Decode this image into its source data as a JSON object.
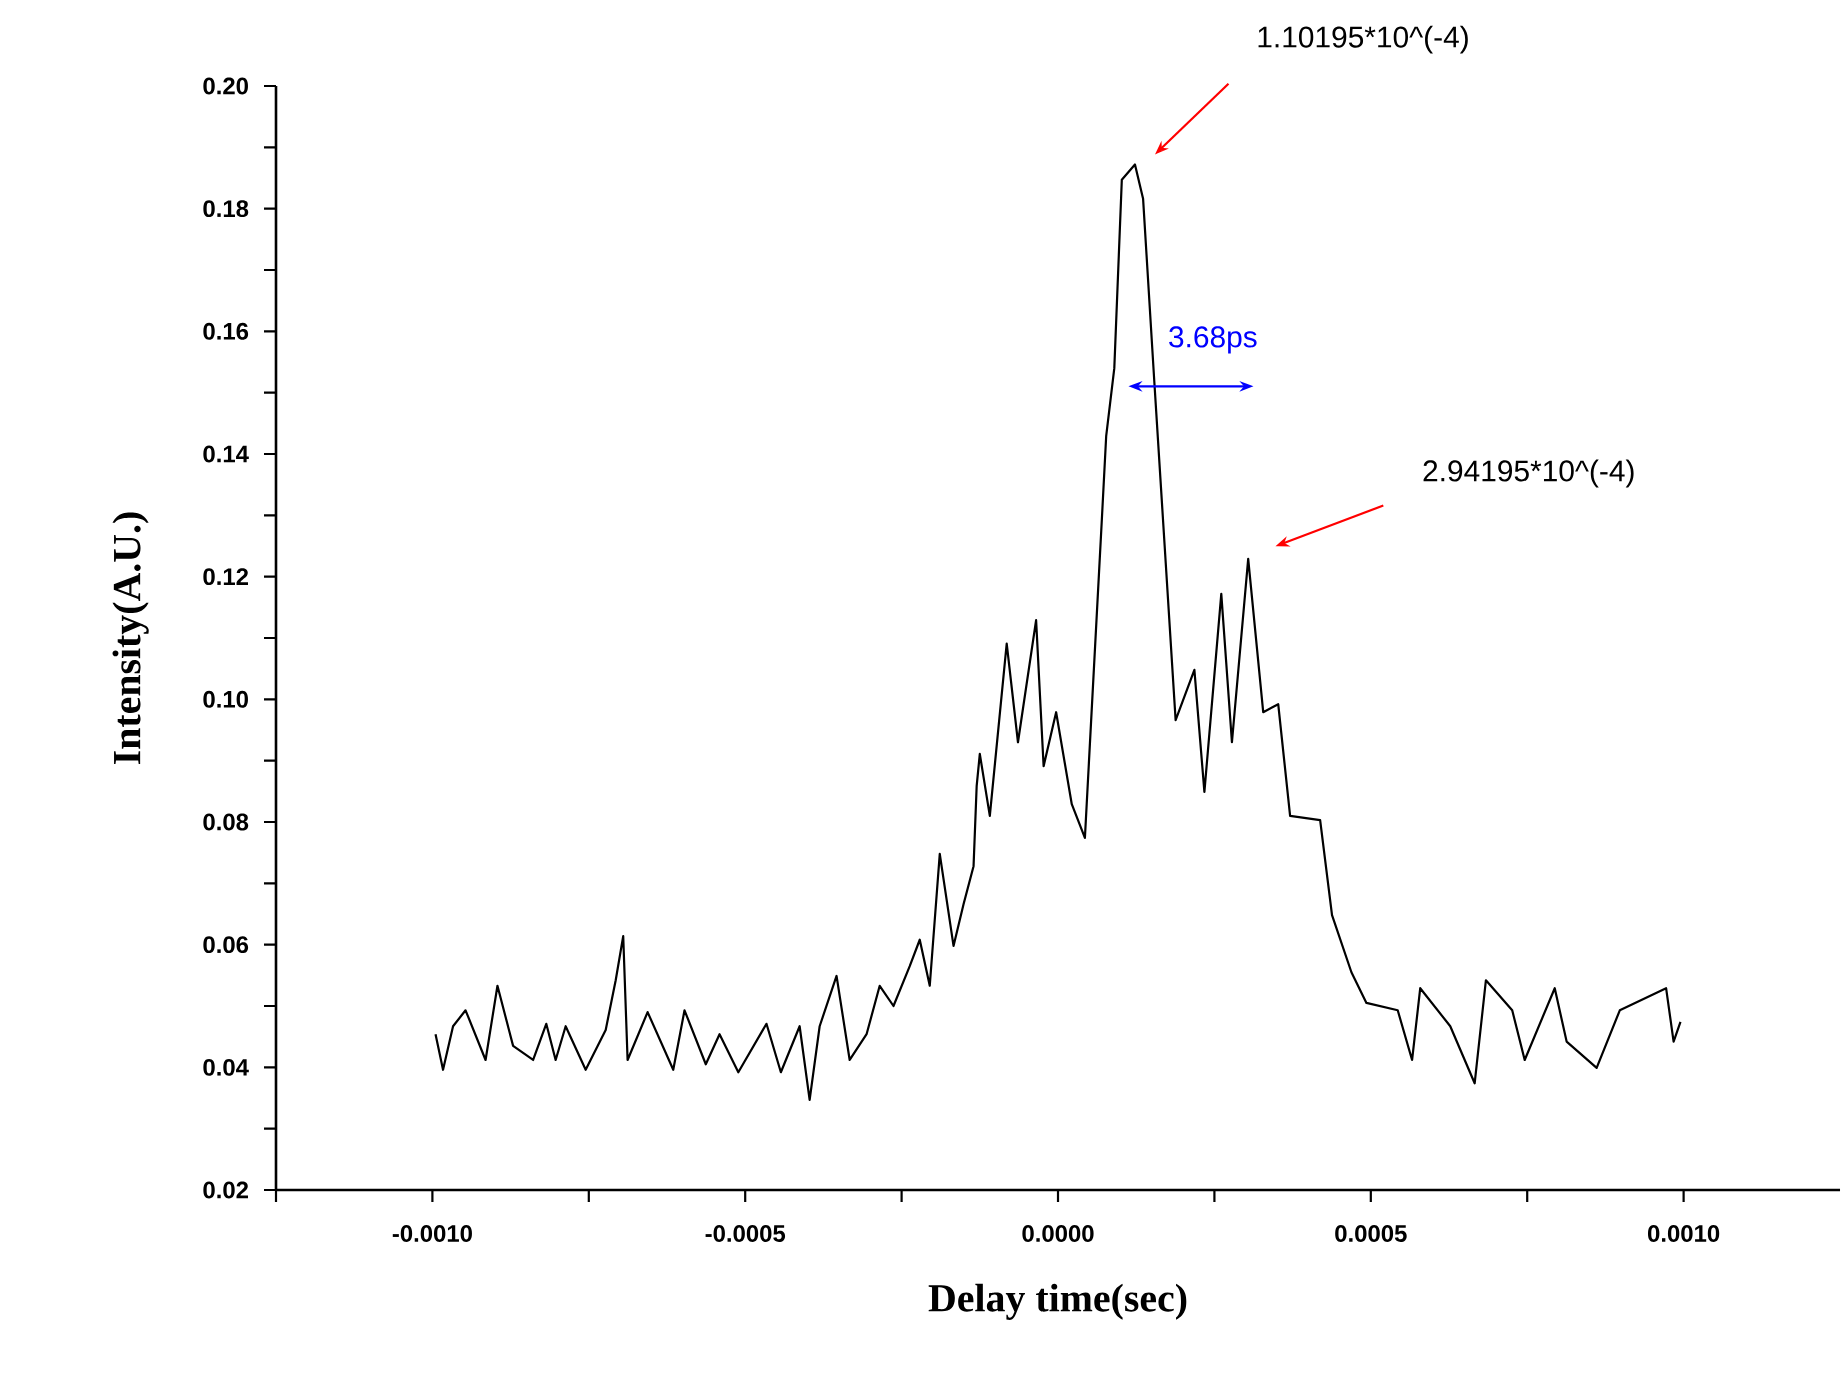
{
  "chart_data": {
    "type": "line",
    "xlabel": "Delay time(sec)",
    "ylabel": "Intensity(A.U.)",
    "xlim": [
      -0.00125,
      0.00125
    ],
    "ylim": [
      0.02,
      0.2
    ],
    "xticks": [
      {
        "value": -0.00125,
        "label": null
      },
      {
        "value": -0.001,
        "label": "-0.0010"
      },
      {
        "value": -0.00075,
        "label": null
      },
      {
        "value": -0.0005,
        "label": "-0.0005"
      },
      {
        "value": -0.00025,
        "label": null
      },
      {
        "value": 0,
        "label": "0.0000"
      },
      {
        "value": 0.00025,
        "label": null
      },
      {
        "value": 0.0005,
        "label": "0.0005"
      },
      {
        "value": 0.00075,
        "label": null
      },
      {
        "value": 0.001,
        "label": "0.0010"
      }
    ],
    "yticks": [
      {
        "value": 0.02,
        "label": "0.02"
      },
      {
        "value": 0.03,
        "label": null
      },
      {
        "value": 0.04,
        "label": "0.04"
      },
      {
        "value": 0.05,
        "label": null
      },
      {
        "value": 0.06,
        "label": "0.06"
      },
      {
        "value": 0.07,
        "label": null
      },
      {
        "value": 0.08,
        "label": "0.08"
      },
      {
        "value": 0.09,
        "label": null
      },
      {
        "value": 0.1,
        "label": "0.10"
      },
      {
        "value": 0.11,
        "label": null
      },
      {
        "value": 0.12,
        "label": "0.12"
      },
      {
        "value": 0.13,
        "label": null
      },
      {
        "value": 0.14,
        "label": "0.14"
      },
      {
        "value": 0.15,
        "label": null
      },
      {
        "value": 0.16,
        "label": "0.16"
      },
      {
        "value": 0.17,
        "label": null
      },
      {
        "value": 0.18,
        "label": "0.18"
      },
      {
        "value": 0.19,
        "label": null
      },
      {
        "value": 0.2,
        "label": "0.20"
      }
    ],
    "line_style": "solid",
    "annotations": [
      "1.10195*10^(-4)",
      "2.94195*10^(-4)",
      "3.68ps"
    ],
    "series": [
      {
        "color": "#000000",
        "x": [
          -0.000995,
          -0.000983,
          -0.000967,
          -0.000947,
          -0.000915,
          -0.000896,
          -0.000871,
          -0.000839,
          -0.000818,
          -0.000803,
          -0.000787,
          -0.000755,
          -0.000723,
          -0.000707,
          -0.000695,
          -0.000688,
          -0.000656,
          -0.000615,
          -0.000597,
          -0.000563,
          -0.000541,
          -0.000511,
          -0.000466,
          -0.000443,
          -0.000413,
          -0.000397,
          -0.000381,
          -0.000354,
          -0.000333,
          -0.000306,
          -0.000285,
          -0.000263,
          -0.000237,
          -0.000221,
          -0.000205,
          -0.000189,
          -0.000167,
          -0.000151,
          -0.000135,
          -0.00013,
          -0.000125,
          -0.000109,
          -8.2e-05,
          -6.4e-05,
          -3.5e-05,
          -2.3e-05,
          -3e-06,
          2.2e-05,
          4.3e-05,
          5.3e-05,
          7e-05,
          7.7e-05,
          9e-05,
          0.000102,
          0.000123,
          0.000136,
          0.000154,
          0.000188,
          0.000218,
          0.000234,
          0.000261,
          0.000278,
          0.000304,
          0.000328,
          0.000352,
          0.000371,
          0.000419,
          0.000438,
          0.000469,
          0.000493,
          0.000543,
          0.000566,
          0.000579,
          0.000627,
          0.000666,
          0.000684,
          0.000726,
          0.000746,
          0.000794,
          0.000813,
          0.000861,
          0.000898,
          0.000972,
          0.000984,
          0.000995
        ],
        "values": [
          0.0454,
          0.0396,
          0.0467,
          0.0493,
          0.0412,
          0.0533,
          0.0435,
          0.0412,
          0.0471,
          0.0412,
          0.0467,
          0.0396,
          0.0461,
          0.0542,
          0.0614,
          0.0412,
          0.049,
          0.0396,
          0.0493,
          0.0405,
          0.0454,
          0.0392,
          0.0471,
          0.0392,
          0.0467,
          0.0347,
          0.0467,
          0.0549,
          0.0412,
          0.0454,
          0.0533,
          0.05,
          0.0565,
          0.0608,
          0.0533,
          0.0748,
          0.0598,
          0.0666,
          0.0728,
          0.0859,
          0.0911,
          0.081,
          0.1091,
          0.093,
          0.1129,
          0.0891,
          0.0979,
          0.0829,
          0.0774,
          0.0966,
          0.1292,
          0.1429,
          0.154,
          0.1847,
          0.1872,
          0.1816,
          0.1517,
          0.0966,
          0.1048,
          0.0849,
          0.1172,
          0.093,
          0.1229,
          0.0979,
          0.0992,
          0.081,
          0.0803,
          0.0648,
          0.0555,
          0.0505,
          0.0493,
          0.0412,
          0.0529,
          0.0467,
          0.0374,
          0.0542,
          0.0493,
          0.0412,
          0.0529,
          0.0442,
          0.0399,
          0.0493,
          0.0529,
          0.0442,
          0.0474
        ]
      }
    ]
  }
}
